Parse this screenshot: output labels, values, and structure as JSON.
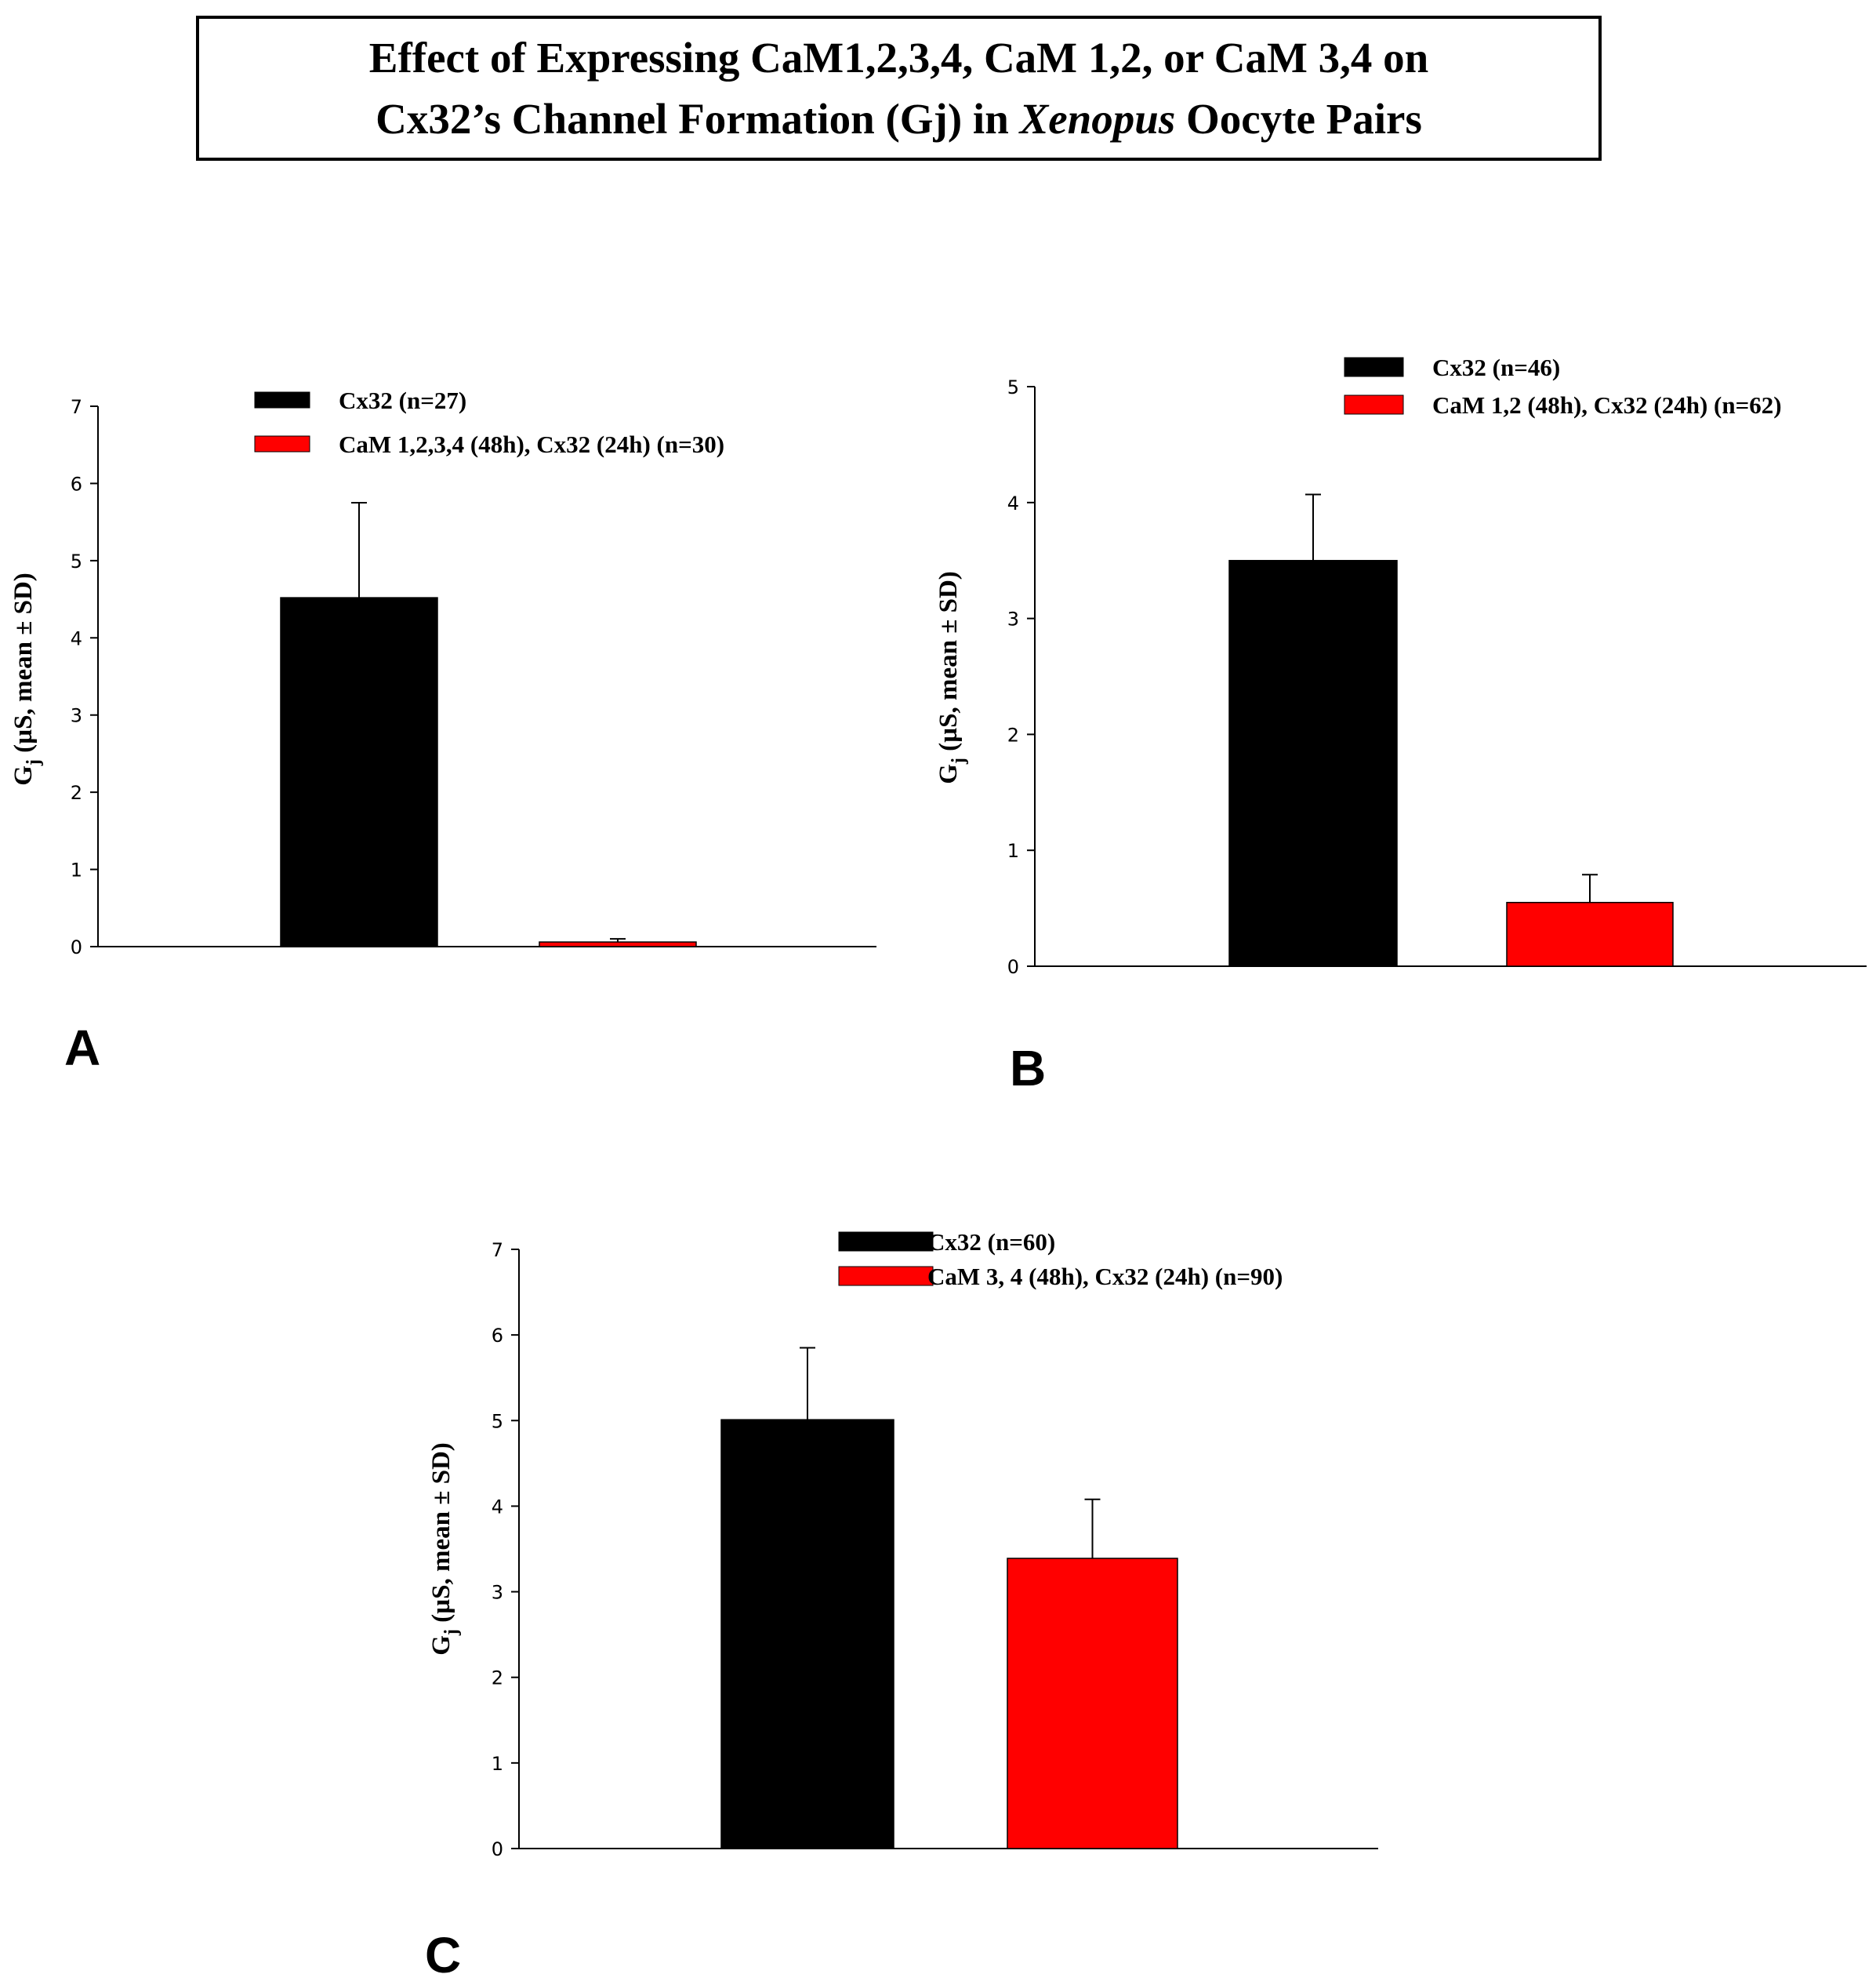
{
  "figure": {
    "title_line1": "Effect of Expressing  CaM1,2,3,4, CaM 1,2, or CaM 3,4 on",
    "title_line2_pre": "Cx32’s Channel Formation (Gj) in ",
    "title_line2_italic": "Xenopus",
    "title_line2_post": " Oocyte Pairs"
  },
  "colors": {
    "control": "#000000",
    "treatment": "#ff0000"
  },
  "chart_data": [
    {
      "panel": "A",
      "type": "bar",
      "ylabel_main": "G",
      "ylabel_sub": "j",
      "ylabel_rest": " (µS, mean ± SD)",
      "ylim": [
        0,
        7
      ],
      "yticks": [
        0,
        1,
        2,
        3,
        4,
        5,
        6,
        7
      ],
      "legend_position": "top",
      "series": [
        {
          "name": "Cx32 (n=27)",
          "value": 4.52,
          "sd": 1.23,
          "color": "#000000"
        },
        {
          "name": "CaM 1,2,3,4 (48h), Cx32 (24h) (n=30)",
          "value": 0.06,
          "sd": 0.04,
          "color": "#ff0000"
        }
      ]
    },
    {
      "panel": "B",
      "type": "bar",
      "ylabel_main": "G",
      "ylabel_sub": "j",
      "ylabel_rest": " (µS, mean ± SD)",
      "ylim": [
        0,
        5
      ],
      "yticks": [
        0,
        1,
        2,
        3,
        4,
        5
      ],
      "legend_position": "top",
      "series": [
        {
          "name": "Cx32 (n=46)",
          "value": 3.5,
          "sd": 0.57,
          "color": "#000000"
        },
        {
          "name": "CaM 1,2 (48h), Cx32 (24h) (n=62)",
          "value": 0.55,
          "sd": 0.24,
          "color": "#ff0000"
        }
      ]
    },
    {
      "panel": "C",
      "type": "bar",
      "ylabel_main": "G",
      "ylabel_sub": "j",
      "ylabel_rest": " (µS, mean ± SD)",
      "ylim": [
        0,
        7
      ],
      "yticks": [
        0,
        1,
        2,
        3,
        4,
        5,
        6,
        7
      ],
      "legend_position": "top",
      "series": [
        {
          "name": "Cx32 (n=60)",
          "value": 5.01,
          "sd": 0.84,
          "color": "#000000"
        },
        {
          "name": "CaM 3, 4 (48h), Cx32 (24h) (n=90)",
          "value": 3.39,
          "sd": 0.69,
          "color": "#ff0000"
        }
      ]
    }
  ]
}
